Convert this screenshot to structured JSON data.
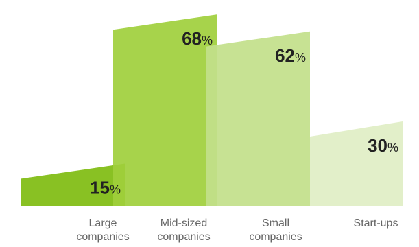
{
  "chart_data": {
    "type": "bar",
    "title": "",
    "xlabel": "",
    "ylabel": "",
    "ylim": [
      0,
      70
    ],
    "unit": "%",
    "categories": [
      [
        "Large",
        "companies"
      ],
      [
        "Mid-sized",
        "companies"
      ],
      [
        "Small",
        "companies"
      ],
      [
        "Start-ups"
      ]
    ],
    "values": [
      15,
      68,
      62,
      30
    ],
    "colors": [
      "#7fbc10",
      "#9fcf3c",
      "#c2df8a",
      "#e0eec4"
    ]
  }
}
